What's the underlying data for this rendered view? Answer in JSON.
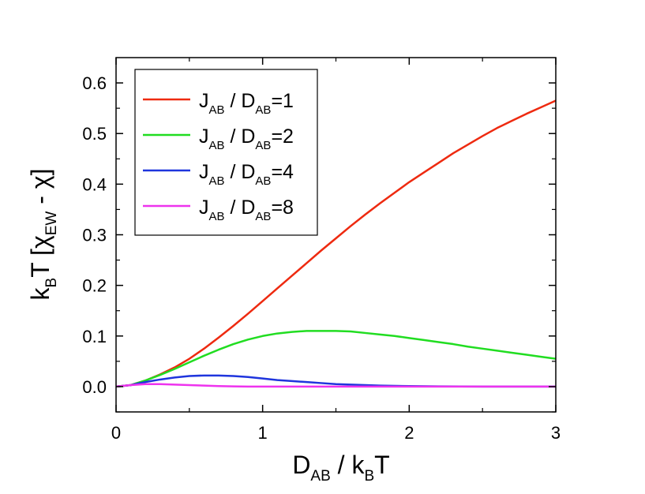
{
  "chart_data": {
    "type": "line",
    "x_axis": {
      "label": {
        "main": "D",
        "sub": "AB",
        "mid": " / k",
        "sub2": "B",
        "tail": "T"
      },
      "range": [
        0,
        3
      ],
      "ticks": [
        0,
        1,
        2,
        3
      ],
      "tick_labels": [
        "0",
        "1",
        "2",
        "3"
      ]
    },
    "y_axis": {
      "label": {
        "main": "k",
        "sub": "B",
        "mid": "T [χ",
        "sub2": "EW",
        "tail": " - χ]"
      },
      "range": [
        -0.05,
        0.65
      ],
      "ticks": [
        0.0,
        0.1,
        0.2,
        0.3,
        0.4,
        0.5,
        0.6
      ],
      "tick_labels": [
        "0.0",
        "0.1",
        "0.2",
        "0.3",
        "0.4",
        "0.5",
        "0.6"
      ]
    },
    "grid": false,
    "legend": {
      "position": "top-left"
    },
    "series": [
      {
        "label": {
          "a": "J",
          "a_sub": "AB",
          "mid": " / D",
          "b_sub": "AB",
          "tail": "=1"
        },
        "color": "#ee2a10",
        "x": [
          0,
          0.1,
          0.2,
          0.3,
          0.4,
          0.5,
          0.6,
          0.7,
          0.8,
          0.9,
          1.0,
          1.1,
          1.2,
          1.3,
          1.4,
          1.5,
          1.6,
          1.7,
          1.8,
          1.9,
          2.0,
          2.1,
          2.2,
          2.3,
          2.4,
          2.5,
          2.6,
          2.7,
          2.8,
          2.9,
          3.0
        ],
        "y": [
          0,
          0.003,
          0.012,
          0.024,
          0.038,
          0.055,
          0.075,
          0.097,
          0.12,
          0.144,
          0.169,
          0.194,
          0.219,
          0.244,
          0.269,
          0.293,
          0.317,
          0.34,
          0.362,
          0.383,
          0.404,
          0.423,
          0.442,
          0.461,
          0.478,
          0.495,
          0.511,
          0.525,
          0.539,
          0.552,
          0.565
        ]
      },
      {
        "label": {
          "a": "J",
          "a_sub": "AB",
          "mid": " / D",
          "b_sub": "AB",
          "tail": "=2"
        },
        "color": "#21dd21",
        "x": [
          0,
          0.1,
          0.2,
          0.3,
          0.4,
          0.5,
          0.6,
          0.7,
          0.8,
          0.9,
          1.0,
          1.1,
          1.2,
          1.3,
          1.4,
          1.5,
          1.6,
          1.7,
          1.8,
          1.9,
          2.0,
          2.1,
          2.2,
          2.3,
          2.4,
          2.5,
          2.6,
          2.7,
          2.8,
          2.9,
          3.0
        ],
        "y": [
          0,
          0.003,
          0.012,
          0.023,
          0.035,
          0.048,
          0.061,
          0.073,
          0.084,
          0.093,
          0.1,
          0.105,
          0.108,
          0.11,
          0.11,
          0.11,
          0.109,
          0.106,
          0.103,
          0.1,
          0.096,
          0.092,
          0.088,
          0.084,
          0.079,
          0.075,
          0.071,
          0.067,
          0.063,
          0.059,
          0.055
        ]
      },
      {
        "label": {
          "a": "J",
          "a_sub": "AB",
          "mid": " / D",
          "b_sub": "AB",
          "tail": "=4"
        },
        "color": "#1f35dd",
        "x": [
          0,
          0.1,
          0.2,
          0.3,
          0.4,
          0.5,
          0.6,
          0.7,
          0.8,
          0.9,
          1.0,
          1.1,
          1.2,
          1.3,
          1.4,
          1.5,
          1.6,
          1.8,
          2.0,
          2.2,
          2.5,
          3.0
        ],
        "y": [
          0,
          0.003,
          0.009,
          0.014,
          0.018,
          0.021,
          0.022,
          0.022,
          0.021,
          0.019,
          0.016,
          0.013,
          0.011,
          0.009,
          0.007,
          0.005,
          0.004,
          0.002,
          0.001,
          0.0005,
          0.0,
          0.0
        ]
      },
      {
        "label": {
          "a": "J",
          "a_sub": "AB",
          "mid": " / D",
          "b_sub": "AB",
          "tail": "=8"
        },
        "color": "#ee33ee",
        "x": [
          0,
          0.1,
          0.2,
          0.3,
          0.4,
          0.5,
          0.6,
          0.7,
          0.8,
          0.9,
          1.0,
          1.2,
          1.5,
          2.0,
          2.5,
          3.0
        ],
        "y": [
          0,
          0.003,
          0.005,
          0.005,
          0.004,
          0.003,
          0.002,
          0.001,
          0.0005,
          0.0,
          0.0,
          0.0,
          0.0,
          0.0,
          0.0,
          0.0
        ]
      }
    ]
  }
}
